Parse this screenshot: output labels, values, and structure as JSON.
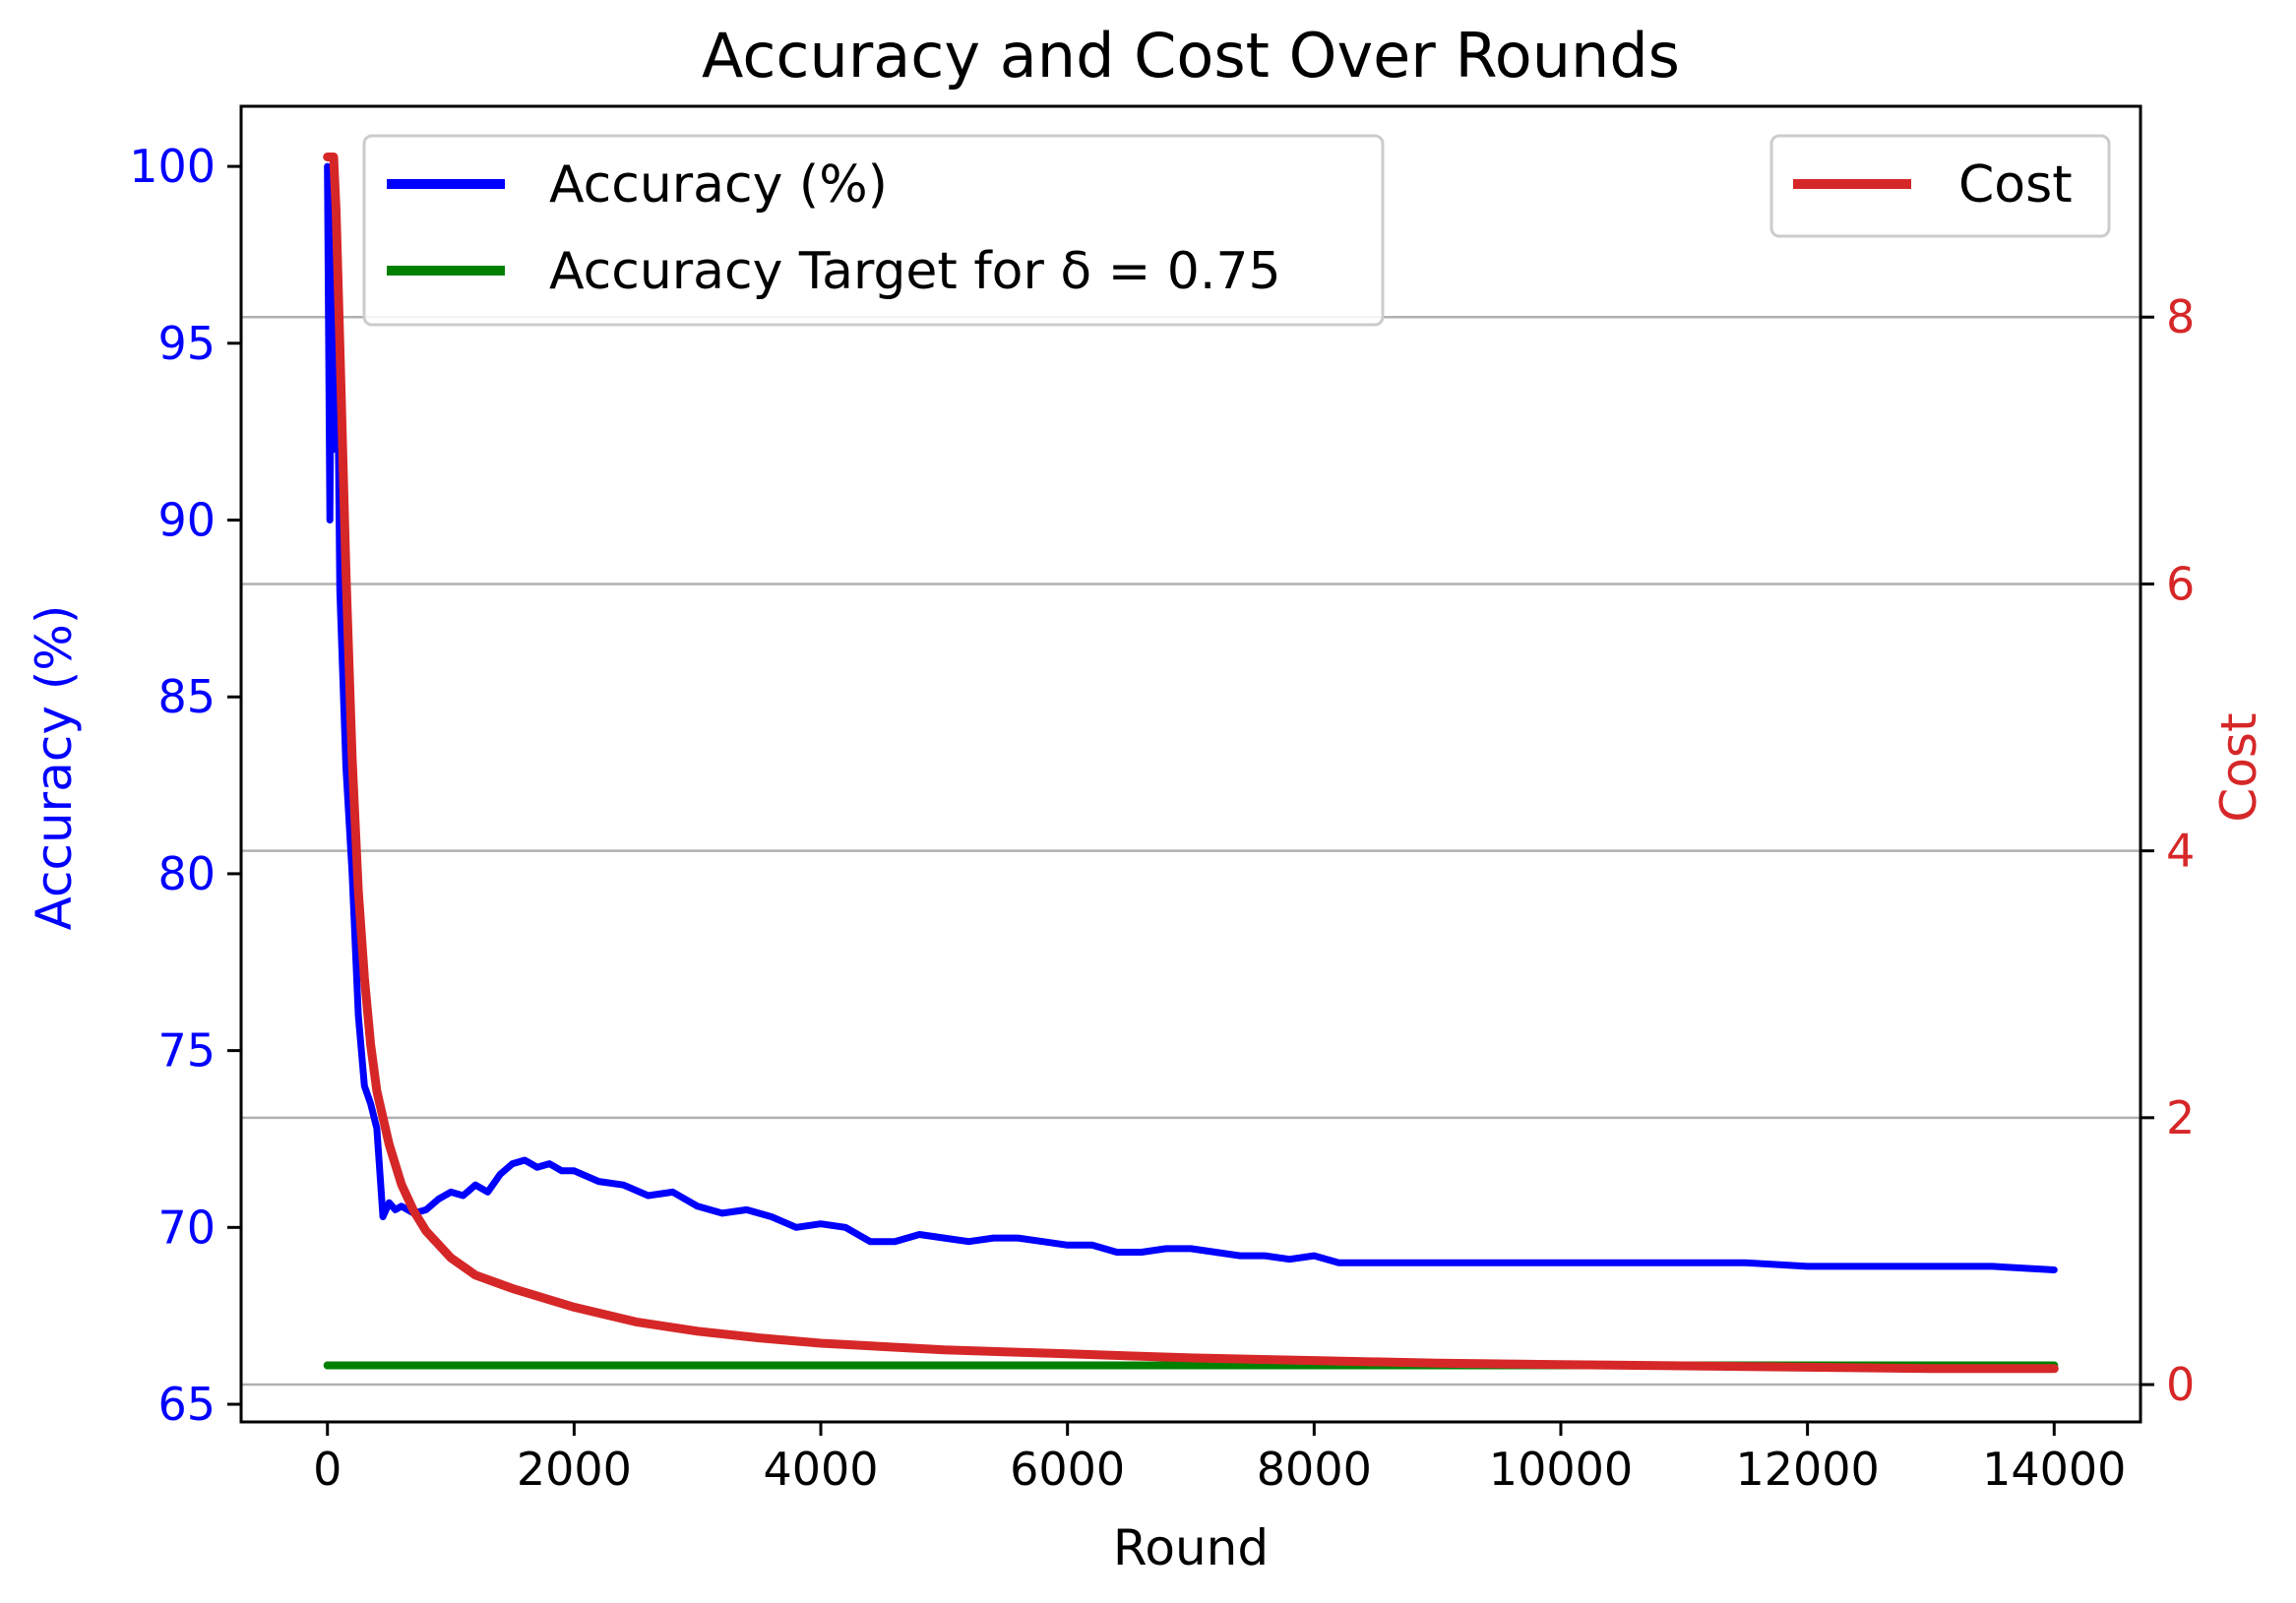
{
  "chart_data": {
    "type": "line",
    "title": "Accuracy and Cost Over Rounds",
    "xlabel": "Round",
    "ylabel_left": "Accuracy (%)",
    "ylabel_right": "Cost",
    "xlim": [
      -700,
      14700
    ],
    "ylim_left": [
      64.5,
      101.7
    ],
    "ylim_right": [
      -0.28,
      9.58
    ],
    "x_ticks": [
      0,
      2000,
      4000,
      6000,
      8000,
      10000,
      12000,
      14000
    ],
    "x_tick_labels": [
      "0",
      "2000",
      "4000",
      "6000",
      "8000",
      "10000",
      "12000",
      "14000"
    ],
    "y_ticks_left": [
      65,
      70,
      75,
      80,
      85,
      90,
      95,
      100
    ],
    "y_tick_labels_left": [
      "65",
      "70",
      "75",
      "80",
      "85",
      "90",
      "95",
      "100"
    ],
    "y_ticks_right": [
      0,
      2,
      4,
      6,
      8
    ],
    "y_tick_labels_right": [
      "0",
      "2",
      "4",
      "6",
      "8"
    ],
    "grid": "horizontal lines at right-axis ticks",
    "colors": {
      "accuracy": "#0000ff",
      "target": "#008000",
      "cost": "#d62728",
      "grid": "#b0b0b0",
      "left_axis": "#0000ff",
      "right_axis": "#d62728"
    },
    "legend_left": {
      "placement": "upper-left",
      "entries": [
        "Accuracy (%)",
        "Accuracy Target for δ = 0.75"
      ]
    },
    "legend_right": {
      "placement": "upper-right",
      "entries": [
        "Cost"
      ]
    },
    "series": [
      {
        "name": "Accuracy (%)",
        "axis": "left",
        "x": [
          0,
          20,
          40,
          60,
          80,
          100,
          150,
          200,
          250,
          300,
          350,
          400,
          450,
          500,
          550,
          600,
          700,
          800,
          900,
          1000,
          1100,
          1200,
          1300,
          1400,
          1500,
          1600,
          1700,
          1800,
          1900,
          2000,
          2200,
          2400,
          2600,
          2800,
          3000,
          3200,
          3400,
          3600,
          3800,
          4000,
          4200,
          4400,
          4600,
          4800,
          5000,
          5200,
          5400,
          5600,
          5800,
          6000,
          6200,
          6400,
          6600,
          6800,
          7000,
          7200,
          7400,
          7600,
          7800,
          8000,
          8200,
          8400,
          8600,
          8800,
          9000,
          9500,
          10000,
          10500,
          11000,
          11500,
          12000,
          12500,
          13000,
          13500,
          14000
        ],
        "values": [
          100,
          90,
          100,
          92,
          95,
          88,
          83,
          80,
          76,
          74,
          73.5,
          72.8,
          70.3,
          70.7,
          70.5,
          70.6,
          70.4,
          70.5,
          70.8,
          71.0,
          70.9,
          71.2,
          71.0,
          71.5,
          71.8,
          71.9,
          71.7,
          71.8,
          71.6,
          71.6,
          71.3,
          71.2,
          70.9,
          71.0,
          70.6,
          70.4,
          70.5,
          70.3,
          70.0,
          70.1,
          70.0,
          69.6,
          69.6,
          69.8,
          69.7,
          69.6,
          69.7,
          69.7,
          69.6,
          69.5,
          69.5,
          69.3,
          69.3,
          69.4,
          69.4,
          69.3,
          69.2,
          69.2,
          69.1,
          69.2,
          69.0,
          69.0,
          69.0,
          69.0,
          69.0,
          69.0,
          69.0,
          69.0,
          69.0,
          69.0,
          68.9,
          68.9,
          68.9,
          68.9,
          68.8
        ]
      },
      {
        "name": "Accuracy Target for δ = 0.75",
        "axis": "left",
        "x": [
          0,
          14000
        ],
        "values": [
          66.1,
          66.1
        ]
      },
      {
        "name": "Cost",
        "axis": "right",
        "x": [
          0,
          50,
          70,
          100,
          150,
          200,
          250,
          300,
          350,
          400,
          500,
          600,
          700,
          800,
          1000,
          1200,
          1500,
          2000,
          2500,
          3000,
          3500,
          4000,
          5000,
          6000,
          7000,
          8000,
          9000,
          10000,
          11000,
          12000,
          13000,
          14000
        ],
        "values": [
          9.2,
          9.2,
          8.8,
          7.8,
          6.1,
          4.7,
          3.7,
          3.05,
          2.55,
          2.2,
          1.8,
          1.5,
          1.3,
          1.15,
          0.95,
          0.82,
          0.72,
          0.58,
          0.47,
          0.4,
          0.35,
          0.31,
          0.26,
          0.23,
          0.2,
          0.18,
          0.16,
          0.15,
          0.14,
          0.13,
          0.12,
          0.12
        ]
      }
    ]
  }
}
